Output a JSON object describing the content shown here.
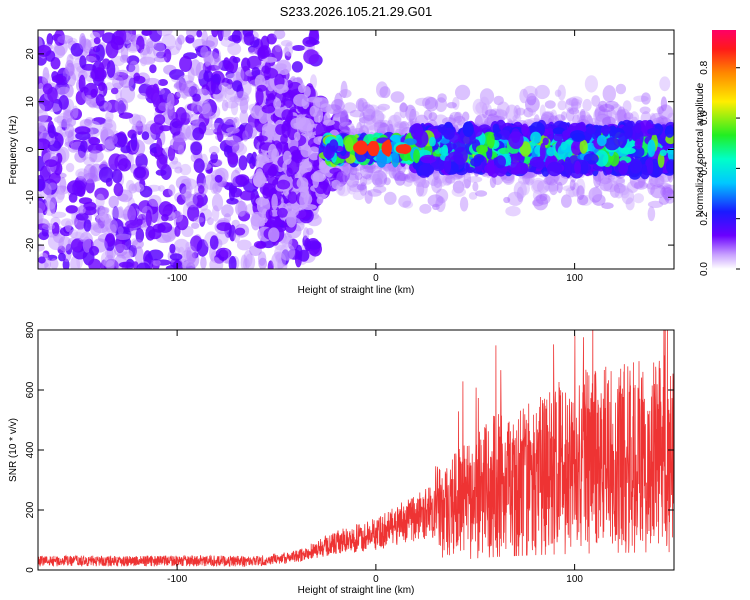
{
  "figure_title": "S233.2026.105.21.29.G01",
  "chart_data": [
    {
      "type": "heatmap",
      "title": "S233.2026.105.21.29.G01",
      "xlabel": "Height of straight line (km)",
      "ylabel": "Frequency (Hz)",
      "xlim": [
        -170,
        150
      ],
      "ylim": [
        -25,
        25
      ],
      "xticks": [
        -100,
        0,
        100
      ],
      "xtick_labels": [
        "-100",
        "0",
        "100"
      ],
      "yticks": [
        -20,
        -10,
        0,
        10,
        20
      ],
      "ytick_labels": [
        "-20",
        "-10",
        "0",
        "10",
        "20"
      ],
      "colorbar": {
        "label": "Normalized spectral amplitude",
        "range": [
          0,
          0.95
        ],
        "ticks": [
          0.0,
          0.2,
          0.4,
          0.6,
          0.8
        ],
        "tick_labels": [
          "0.0",
          "0.2",
          "0.4",
          "0.6",
          "0.8"
        ]
      },
      "grid": false,
      "signal_band_center_hz": 0
    },
    {
      "type": "line",
      "xlabel": "Height of straight line (km)",
      "ylabel": "SNR (10 * v/v)",
      "xlim": [
        -170,
        150
      ],
      "ylim": [
        0,
        800
      ],
      "xticks": [
        -100,
        0,
        100
      ],
      "xtick_labels": [
        "-100",
        "0",
        "100"
      ],
      "yticks": [
        0,
        200,
        400,
        600,
        800
      ],
      "ytick_labels": [
        "0",
        "200",
        "400",
        "600",
        "800"
      ],
      "grid": false,
      "series_color": "#ee3333",
      "trend": {
        "x": [
          -170,
          -60,
          -40,
          -20,
          0,
          20,
          40,
          60,
          80,
          100,
          120,
          150
        ],
        "y": [
          30,
          30,
          45,
          90,
          120,
          175,
          220,
          290,
          330,
          360,
          380,
          400
        ]
      }
    }
  ]
}
